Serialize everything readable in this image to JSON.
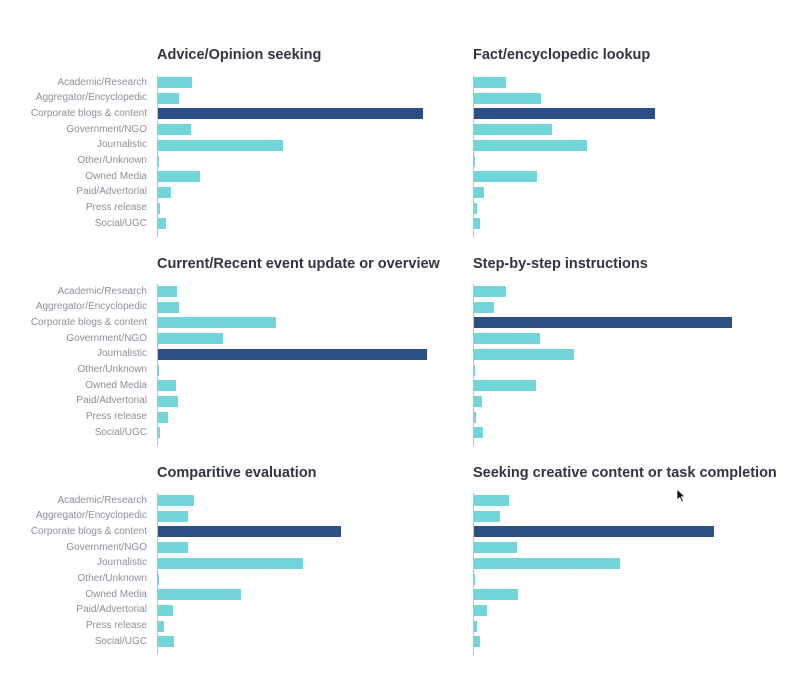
{
  "chart_data": [
    {
      "type": "bar",
      "orientation": "horizontal",
      "title": "Advice/Opinion seeking",
      "categories": [
        "Academic/Research",
        "Aggregator/Encyclopedic",
        "Corporate blogs & content",
        "Government/NGO",
        "Journalistic",
        "Other/Unknown",
        "Owned Media",
        "Paid/Advertorial",
        "Press release",
        "Social/UGC"
      ],
      "values": [
        34,
        21,
        265,
        33,
        125,
        0,
        42,
        13,
        2,
        8
      ],
      "highlight": "Corporate blogs & content",
      "show_labels": true
    },
    {
      "type": "bar",
      "orientation": "horizontal",
      "title": "Fact/encyclopedic lookup",
      "categories": [
        "Academic/Research",
        "Aggregator/Encyclopedic",
        "Corporate blogs & content",
        "Government/NGO",
        "Journalistic",
        "Other/Unknown",
        "Owned Media",
        "Paid/Advertorial",
        "Press release",
        "Social/UGC"
      ],
      "values": [
        32,
        67,
        181,
        78,
        113,
        0,
        63,
        10,
        3,
        6
      ],
      "highlight": "Corporate blogs & content",
      "show_labels": false
    },
    {
      "type": "bar",
      "orientation": "horizontal",
      "title": "Current/Recent event update or overview",
      "categories": [
        "Academic/Research",
        "Aggregator/Encyclopedic",
        "Corporate blogs & content",
        "Government/NGO",
        "Journalistic",
        "Other/Unknown",
        "Owned Media",
        "Paid/Advertorial",
        "Press release",
        "Social/UGC"
      ],
      "values": [
        19,
        21,
        118,
        65,
        269,
        1,
        18,
        20,
        10,
        2
      ],
      "highlight": "Journalistic",
      "show_labels": true
    },
    {
      "type": "bar",
      "orientation": "horizontal",
      "title": "Step-by-step instructions",
      "categories": [
        "Academic/Research",
        "Aggregator/Encyclopedic",
        "Corporate blogs & content",
        "Government/NGO",
        "Journalistic",
        "Other/Unknown",
        "Owned Media",
        "Paid/Advertorial",
        "Press release",
        "Social/UGC"
      ],
      "values": [
        32,
        20,
        258,
        66,
        100,
        1,
        62,
        8,
        2,
        9
      ],
      "highlight": "Corporate blogs & content",
      "show_labels": false
    },
    {
      "type": "bar",
      "orientation": "horizontal",
      "title": "Comparitive evaluation",
      "categories": [
        "Academic/Research",
        "Aggregator/Encyclopedic",
        "Corporate blogs & content",
        "Government/NGO",
        "Journalistic",
        "Other/Unknown",
        "Owned Media",
        "Paid/Advertorial",
        "Press release",
        "Social/UGC"
      ],
      "values": [
        36,
        30,
        183,
        30,
        145,
        1,
        83,
        15,
        6,
        16
      ],
      "highlight": "Corporate blogs & content",
      "show_labels": true
    },
    {
      "type": "bar",
      "orientation": "horizontal",
      "title": "Seeking creative content or task completion",
      "categories": [
        "Academic/Research",
        "Aggregator/Encyclopedic",
        "Corporate blogs & content",
        "Government/NGO",
        "Journalistic",
        "Other/Unknown",
        "Owned Media",
        "Paid/Advertorial",
        "Press release",
        "Social/UGC"
      ],
      "values": [
        35,
        26,
        240,
        43,
        146,
        1,
        44,
        13,
        3,
        6
      ],
      "highlight": "Corporate blogs & content",
      "show_labels": false
    }
  ],
  "colors": {
    "bar": "#72d5da",
    "highlight": "#2c4f86"
  },
  "cursor_icon": "mouse-pointer-icon"
}
